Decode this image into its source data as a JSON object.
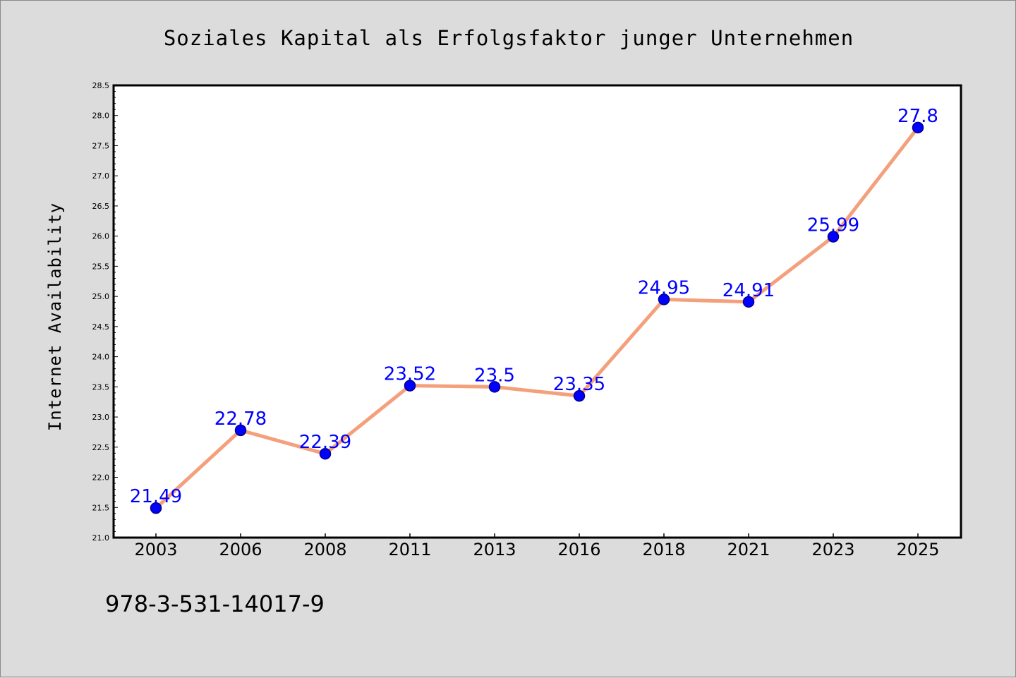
{
  "chart_data": {
    "type": "line",
    "title": "Soziales Kapital als Erfolgsfaktor junger Unternehmen",
    "xlabel": "",
    "ylabel": "Internet Availability",
    "categories": [
      "2003",
      "2006",
      "2008",
      "2011",
      "2013",
      "2016",
      "2018",
      "2021",
      "2023",
      "2025"
    ],
    "series": [
      {
        "values": [
          21.49,
          22.78,
          22.39,
          23.52,
          23.5,
          23.35,
          24.95,
          24.91,
          25.99,
          27.8
        ],
        "labels": [
          "21.49",
          "22.78",
          "22.39",
          "23.52",
          "23.5",
          "23.35",
          "24.95",
          "24.91",
          "25.99",
          "27.8"
        ]
      }
    ],
    "ylim": [
      21.0,
      28.5
    ],
    "yticks": [
      "21.0",
      "21.5",
      "22.0",
      "22.5",
      "23.0",
      "23.5",
      "24.0",
      "24.5",
      "25.0",
      "25.5",
      "26.0",
      "26.5",
      "27.0",
      "27.5",
      "28.0",
      "28.5"
    ],
    "grid": false,
    "legend": "none",
    "colors": {
      "line": "#f4a07c",
      "marker": "#0000ff",
      "marker_edge": "#00008b",
      "data_label": "#0000ff",
      "plot_background": "#ffffff",
      "figure_background": "#dcdcdc"
    }
  },
  "footer": {
    "isbn": "978-3-531-14017-9"
  }
}
